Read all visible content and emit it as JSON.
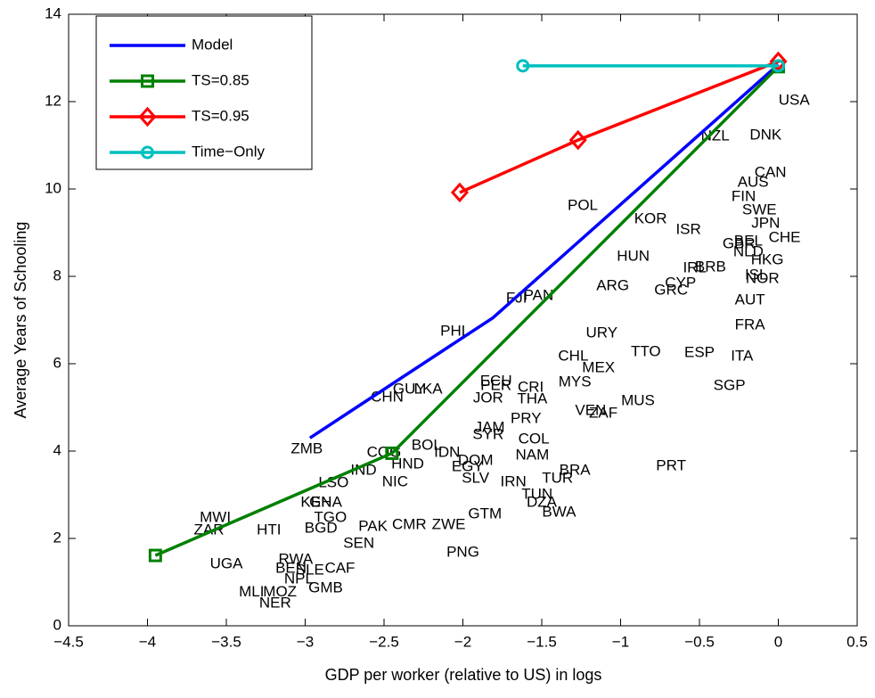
{
  "chart_data": {
    "type": "line",
    "xlabel": "GDP per worker (relative to US) in logs",
    "ylabel": "Average Years of Schooling",
    "xlim": [
      -4.5,
      0.5
    ],
    "xticks": [
      {
        "value": -4.5,
        "label": "−4.5"
      },
      {
        "value": -4,
        "label": "−4"
      },
      {
        "value": -3.5,
        "label": "−3.5"
      },
      {
        "value": -3,
        "label": "−3"
      },
      {
        "value": -2.5,
        "label": "−2.5"
      },
      {
        "value": -2,
        "label": "−2"
      },
      {
        "value": -1.5,
        "label": "−1.5"
      },
      {
        "value": -1,
        "label": "−1"
      },
      {
        "value": -0.5,
        "label": "−0.5"
      },
      0,
      0.5
    ],
    "ylim": [
      0,
      14
    ],
    "yticks": [
      0,
      2,
      4,
      6,
      8,
      10,
      12,
      14
    ],
    "legend": "upper left",
    "series": [
      {
        "name": "Model",
        "color": "#0000ff",
        "marker": "none",
        "x": [
          -2.97,
          -1.81,
          0
        ],
        "values": [
          4.3,
          7.05,
          12.85
        ]
      },
      {
        "name": "TS=0.85",
        "color": "#008000",
        "marker": "square",
        "x": [
          -3.95,
          -2.45,
          0
        ],
        "values": [
          1.61,
          3.95,
          12.8
        ]
      },
      {
        "name": "TS=0.95",
        "color": "#ff0000",
        "marker": "diamond",
        "x": [
          -2.02,
          -1.27,
          0
        ],
        "values": [
          9.92,
          11.12,
          12.92
        ]
      },
      {
        "name": "Time−Only",
        "color": "#00bfbf",
        "marker": "circle",
        "x": [
          -1.62,
          0
        ],
        "values": [
          12.82,
          12.82
        ]
      }
    ],
    "point_labels": [
      {
        "text": "USA",
        "x": 0.1,
        "y": 12.02
      },
      {
        "text": "DNK",
        "x": -0.08,
        "y": 11.22
      },
      {
        "text": "NZL",
        "x": -0.4,
        "y": 11.2
      },
      {
        "text": "CAN",
        "x": -0.05,
        "y": 10.37
      },
      {
        "text": "AUS",
        "x": -0.16,
        "y": 10.14
      },
      {
        "text": "FIN",
        "x": -0.22,
        "y": 9.82
      },
      {
        "text": "SWE",
        "x": -0.12,
        "y": 9.51
      },
      {
        "text": "JPN",
        "x": -0.08,
        "y": 9.2
      },
      {
        "text": "CHE",
        "x": 0.04,
        "y": 8.88
      },
      {
        "text": "GBR",
        "x": -0.25,
        "y": 8.73
      },
      {
        "text": "BEL",
        "x": -0.19,
        "y": 8.8
      },
      {
        "text": "NLD",
        "x": -0.19,
        "y": 8.55
      },
      {
        "text": "HKG",
        "x": -0.07,
        "y": 8.37
      },
      {
        "text": "ISL",
        "x": -0.14,
        "y": 8.02
      },
      {
        "text": "NOR",
        "x": -0.1,
        "y": 7.94
      },
      {
        "text": "KOR",
        "x": -0.81,
        "y": 9.31
      },
      {
        "text": "ISR",
        "x": -0.57,
        "y": 9.06
      },
      {
        "text": "POL",
        "x": -1.24,
        "y": 9.61
      },
      {
        "text": "HUN",
        "x": -0.92,
        "y": 8.45
      },
      {
        "text": "IRL",
        "x": -0.53,
        "y": 8.18
      },
      {
        "text": "BRB",
        "x": -0.43,
        "y": 8.2
      },
      {
        "text": "CYP",
        "x": -0.62,
        "y": 7.84
      },
      {
        "text": "GRC",
        "x": -0.68,
        "y": 7.67
      },
      {
        "text": "ARG",
        "x": -1.05,
        "y": 7.78
      },
      {
        "text": "AUT",
        "x": -0.18,
        "y": 7.45
      },
      {
        "text": "FRA",
        "x": -0.18,
        "y": 6.88
      },
      {
        "text": "FJI",
        "x": -1.66,
        "y": 7.49
      },
      {
        "text": "PAN",
        "x": -1.52,
        "y": 7.55
      },
      {
        "text": "PHL",
        "x": -2.05,
        "y": 6.73
      },
      {
        "text": "URY",
        "x": -1.12,
        "y": 6.69
      },
      {
        "text": "TTO",
        "x": -0.84,
        "y": 6.27
      },
      {
        "text": "ESP",
        "x": -0.5,
        "y": 6.24
      },
      {
        "text": "ITA",
        "x": -0.23,
        "y": 6.16
      },
      {
        "text": "CHL",
        "x": -1.3,
        "y": 6.16
      },
      {
        "text": "MEX",
        "x": -1.14,
        "y": 5.9
      },
      {
        "text": "MYS",
        "x": -1.29,
        "y": 5.57
      },
      {
        "text": "SGP",
        "x": -0.31,
        "y": 5.49
      },
      {
        "text": "ECU",
        "x": -1.79,
        "y": 5.59
      },
      {
        "text": "PER",
        "x": -1.79,
        "y": 5.49
      },
      {
        "text": "CRI",
        "x": -1.57,
        "y": 5.45
      },
      {
        "text": "GUY",
        "x": -2.34,
        "y": 5.41
      },
      {
        "text": "LKA",
        "x": -2.22,
        "y": 5.41
      },
      {
        "text": "CHN",
        "x": -2.48,
        "y": 5.22
      },
      {
        "text": "JOR",
        "x": -1.84,
        "y": 5.2
      },
      {
        "text": "THA",
        "x": -1.56,
        "y": 5.18
      },
      {
        "text": "MUS",
        "x": -0.89,
        "y": 5.14
      },
      {
        "text": "VEN",
        "x": -1.19,
        "y": 4.92
      },
      {
        "text": "ZAF",
        "x": -1.11,
        "y": 4.86
      },
      {
        "text": "PRY",
        "x": -1.6,
        "y": 4.73
      },
      {
        "text": "JAM",
        "x": -1.83,
        "y": 4.53
      },
      {
        "text": "SYR",
        "x": -1.84,
        "y": 4.37
      },
      {
        "text": "COL",
        "x": -1.55,
        "y": 4.27
      },
      {
        "text": "ZMB",
        "x": -2.99,
        "y": 4.04
      },
      {
        "text": "BOL",
        "x": -2.23,
        "y": 4.12
      },
      {
        "text": "IDN",
        "x": -2.1,
        "y": 3.96
      },
      {
        "text": "COG",
        "x": -2.5,
        "y": 3.96
      },
      {
        "text": "HND",
        "x": -2.35,
        "y": 3.69
      },
      {
        "text": "NAM",
        "x": -1.56,
        "y": 3.9
      },
      {
        "text": "DOM",
        "x": -1.92,
        "y": 3.78
      },
      {
        "text": "PRT",
        "x": -0.68,
        "y": 3.65
      },
      {
        "text": "BRA",
        "x": -1.29,
        "y": 3.55
      },
      {
        "text": "EGY",
        "x": -1.97,
        "y": 3.63
      },
      {
        "text": "SLV",
        "x": -1.92,
        "y": 3.37
      },
      {
        "text": "IND",
        "x": -2.63,
        "y": 3.55
      },
      {
        "text": "TUR",
        "x": -1.4,
        "y": 3.37
      },
      {
        "text": "IRN",
        "x": -1.68,
        "y": 3.29
      },
      {
        "text": "NIC",
        "x": -2.43,
        "y": 3.29
      },
      {
        "text": "LSO",
        "x": -2.82,
        "y": 3.27
      },
      {
        "text": "TUN",
        "x": -1.53,
        "y": 3.0
      },
      {
        "text": "DZA",
        "x": -1.5,
        "y": 2.82
      },
      {
        "text": "KEN",
        "x": -2.93,
        "y": 2.82
      },
      {
        "text": "GHA",
        "x": -2.87,
        "y": 2.82
      },
      {
        "text": "BWA",
        "x": -1.39,
        "y": 2.59
      },
      {
        "text": "TGO",
        "x": -2.84,
        "y": 2.47
      },
      {
        "text": "GTM",
        "x": -1.86,
        "y": 2.55
      },
      {
        "text": "MWI",
        "x": -3.57,
        "y": 2.47
      },
      {
        "text": "ZAR",
        "x": -3.61,
        "y": 2.18
      },
      {
        "text": "HTI",
        "x": -3.23,
        "y": 2.18
      },
      {
        "text": "BGD",
        "x": -2.9,
        "y": 2.22
      },
      {
        "text": "PAK",
        "x": -2.57,
        "y": 2.27
      },
      {
        "text": "CMR",
        "x": -2.34,
        "y": 2.31
      },
      {
        "text": "ZWE",
        "x": -2.09,
        "y": 2.31
      },
      {
        "text": "SEN",
        "x": -2.66,
        "y": 1.88
      },
      {
        "text": "PNG",
        "x": -2.0,
        "y": 1.67
      },
      {
        "text": "UGA",
        "x": -3.5,
        "y": 1.41
      },
      {
        "text": "RWA",
        "x": -3.06,
        "y": 1.51
      },
      {
        "text": "BEN",
        "x": -3.09,
        "y": 1.31
      },
      {
        "text": "SLE",
        "x": -2.97,
        "y": 1.27
      },
      {
        "text": "CAF",
        "x": -2.78,
        "y": 1.31
      },
      {
        "text": "NPL",
        "x": -3.04,
        "y": 1.06
      },
      {
        "text": "GMB",
        "x": -2.87,
        "y": 0.86
      },
      {
        "text": "MLI",
        "x": -3.34,
        "y": 0.76
      },
      {
        "text": "MOZ",
        "x": -3.16,
        "y": 0.76
      },
      {
        "text": "NER",
        "x": -3.19,
        "y": 0.51
      }
    ]
  }
}
